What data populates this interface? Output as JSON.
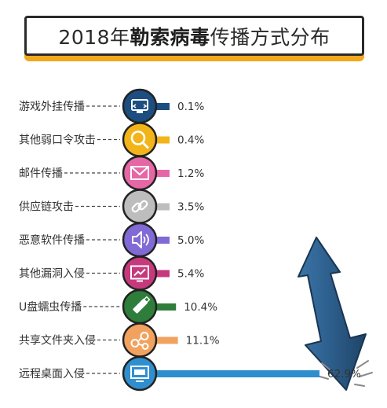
{
  "title": {
    "year": "2018年",
    "strong": "勒索病毒",
    "rest": "传播方式分布"
  },
  "chart_data": {
    "type": "bar",
    "orientation": "horizontal",
    "title": "2018年勒索病毒传播方式分布",
    "unit": "%",
    "categories": [
      "游戏外挂传播",
      "其他弱口令攻击",
      "邮件传播",
      "供应链攻击",
      "恶意软件传播",
      "其他漏洞入侵",
      "U盘蠕虫传播",
      "共享文件夹入侵",
      "远程桌面入侵"
    ],
    "values": [
      0.1,
      0.4,
      1.2,
      3.5,
      5.0,
      5.4,
      10.4,
      11.1,
      62.9
    ],
    "value_labels": [
      "0.1%",
      "0.4%",
      "1.2%",
      "3.5%",
      "5.0%",
      "5.4%",
      "10.4%",
      "11.1%",
      "62.9%"
    ],
    "colors": [
      "#1c4e80",
      "#f2b418",
      "#e667a5",
      "#bdbdbd",
      "#8169d6",
      "#c6397c",
      "#2e7d3a",
      "#f2a25f",
      "#2f8fce"
    ],
    "icons": [
      "game-plugin-icon",
      "search-key-icon",
      "mail-icon",
      "chain-link-icon",
      "speaker-icon",
      "chart-monitor-icon",
      "usb-drive-icon",
      "share-nodes-icon",
      "monitor-icon"
    ],
    "grid": false,
    "legend": "none"
  },
  "decoration": {
    "arrow_color": "#2c5d8a",
    "arrow_icon": "big-down-arrow-icon"
  }
}
